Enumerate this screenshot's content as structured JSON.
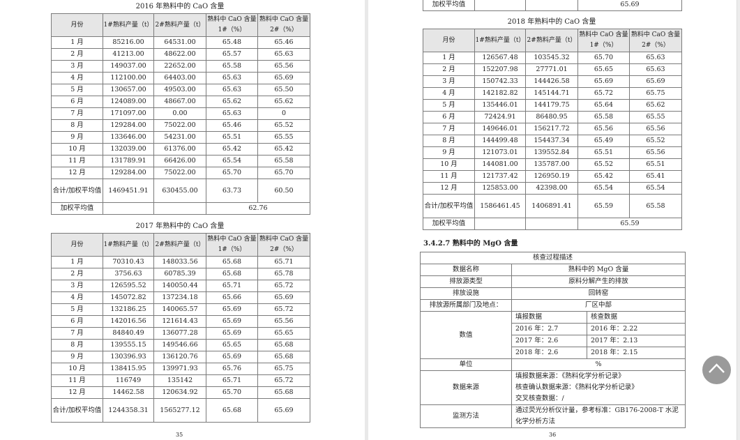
{
  "headers": [
    "月份",
    "1#熟料产量（t）",
    "2#熟料产量（t）",
    "熟料中 CaO 含量1#（%）",
    "熟料中 CaO 含量2#（%）"
  ],
  "total_label": "合计/加权平均值",
  "weighted_label": "加权平均值",
  "tables": [
    {
      "title": "2016 年熟料中的 CaO 含量",
      "rows": [
        [
          "1 月",
          "85216.00",
          "64531.00",
          "65.48",
          "65.46"
        ],
        [
          "2 月",
          "41213.00",
          "48622.00",
          "65.57",
          "65.63"
        ],
        [
          "3 月",
          "149037.00",
          "22652.00",
          "65.58",
          "65.56"
        ],
        [
          "4 月",
          "112100.00",
          "64403.00",
          "65.63",
          "65.69"
        ],
        [
          "5 月",
          "130657.00",
          "49503.00",
          "65.63",
          "65.50"
        ],
        [
          "6 月",
          "124089.00",
          "48667.00",
          "65.62",
          "65.62"
        ],
        [
          "7 月",
          "171097.00",
          "0.00",
          "65.63",
          "0"
        ],
        [
          "8 月",
          "129284.00",
          "75022.00",
          "65.46",
          "65.52"
        ],
        [
          "9 月",
          "133646.00",
          "54231.00",
          "65.51",
          "65.55"
        ],
        [
          "10 月",
          "132039.00",
          "61376.00",
          "65.42",
          "65.42"
        ],
        [
          "11 月",
          "131789.91",
          "66426.00",
          "65.54",
          "65.58"
        ],
        [
          "12 月",
          "129284.00",
          "75022.00",
          "65.70",
          "65.70"
        ]
      ],
      "total": [
        "1469451.91",
        "630455.00",
        "63.73",
        "60.50"
      ],
      "weighted": "62.76"
    },
    {
      "title": "2017 年熟料中的 CaO 含量",
      "rows": [
        [
          "1 月",
          "70310.43",
          "148033.56",
          "65.68",
          "65.71"
        ],
        [
          "2 月",
          "3756.63",
          "60785.39",
          "65.68",
          "65.78"
        ],
        [
          "3 月",
          "126595.52",
          "140050.44",
          "65.71",
          "65.72"
        ],
        [
          "4 月",
          "145072.82",
          "137234.18",
          "65.66",
          "65.69"
        ],
        [
          "5 月",
          "132186.25",
          "140065.57",
          "65.69",
          "65.72"
        ],
        [
          "6 月",
          "142016.56",
          "121614.43",
          "65.69",
          "65.56"
        ],
        [
          "7 月",
          "84840.49",
          "136077.28",
          "65.69",
          "65.65"
        ],
        [
          "8 月",
          "139555.15",
          "149546.66",
          "65.65",
          "65.68"
        ],
        [
          "9 月",
          "130396.93",
          "136120.76",
          "65.69",
          "65.68"
        ],
        [
          "10 月",
          "138415.95",
          "139971.93",
          "65.76",
          "65.75"
        ],
        [
          "11 月",
          "116749",
          "135142",
          "65.71",
          "65.72"
        ],
        [
          "12 月",
          "14462.58",
          "120634.92",
          "65.70",
          "65.68"
        ]
      ],
      "total": [
        "1244358.31",
        "1565277.12",
        "65.68",
        "65.69"
      ],
      "weighted": "65.69"
    },
    {
      "title": "2018 年熟料中的 CaO 含量",
      "rows": [
        [
          "1 月",
          "126567.48",
          "103545.32",
          "65.70",
          "65.63"
        ],
        [
          "2 月",
          "152207.98",
          "27771.01",
          "65.65",
          "65.63"
        ],
        [
          "3 月",
          "150742.33",
          "144426.58",
          "65.69",
          "65.69"
        ],
        [
          "4 月",
          "142182.82",
          "145144.71",
          "65.72",
          "65.75"
        ],
        [
          "5 月",
          "135446.01",
          "144179.75",
          "65.64",
          "65.62"
        ],
        [
          "6 月",
          "72424.91",
          "86480.95",
          "65.58",
          "65.55"
        ],
        [
          "7 月",
          "149646.01",
          "156217.72",
          "65.56",
          "65.56"
        ],
        [
          "8 月",
          "144499.48",
          "154437.34",
          "65.49",
          "65.52"
        ],
        [
          "9 月",
          "121073.01",
          "139552.84",
          "65.51",
          "65.56"
        ],
        [
          "10 月",
          "144081.00",
          "135787.00",
          "65.52",
          "65.51"
        ],
        [
          "11 月",
          "121737.42",
          "126950.19",
          "65.42",
          "65.41"
        ],
        [
          "12 月",
          "125853.00",
          "42398.00",
          "65.54",
          "65.54"
        ]
      ],
      "total": [
        "1586461.45",
        "1406891.41",
        "65.59",
        "65.58"
      ],
      "weighted": "65.59"
    }
  ],
  "section_heading": "3.4.2.7 熟料中的 MgO 含量",
  "mgo": {
    "title": "核查过程描述",
    "rows": [
      [
        "数据名称",
        "熟料中的 MgO 含量"
      ],
      [
        "排放源类型",
        "原料分解产生的排放"
      ],
      [
        "排放设施",
        "回转窑"
      ],
      [
        "排放源所属部门及地点：",
        "厂区中部"
      ]
    ],
    "value_label": "数值",
    "value_headers": [
      "填报数据",
      "核查数据"
    ],
    "values": [
      [
        "2016 年：2.7",
        "2016 年：2.22"
      ],
      [
        "2017 年：2.6",
        "2017 年：2.13"
      ],
      [
        "2018 年：2.6",
        "2018 年：2.15"
      ]
    ],
    "unit_label": "单位",
    "unit": "%",
    "source_label": "数据来源",
    "source_lines": [
      "填报数据来源：《熟料化学分析记录》",
      "核查确认数据来源：《熟料化学分析记录》",
      "交叉核查数据：/"
    ],
    "method_label": "监测方法",
    "method": "通过荧光分析仪计量，参考标准：GB176-2008-T 水泥化学分析方法"
  },
  "page_numbers": [
    "35",
    "36"
  ]
}
